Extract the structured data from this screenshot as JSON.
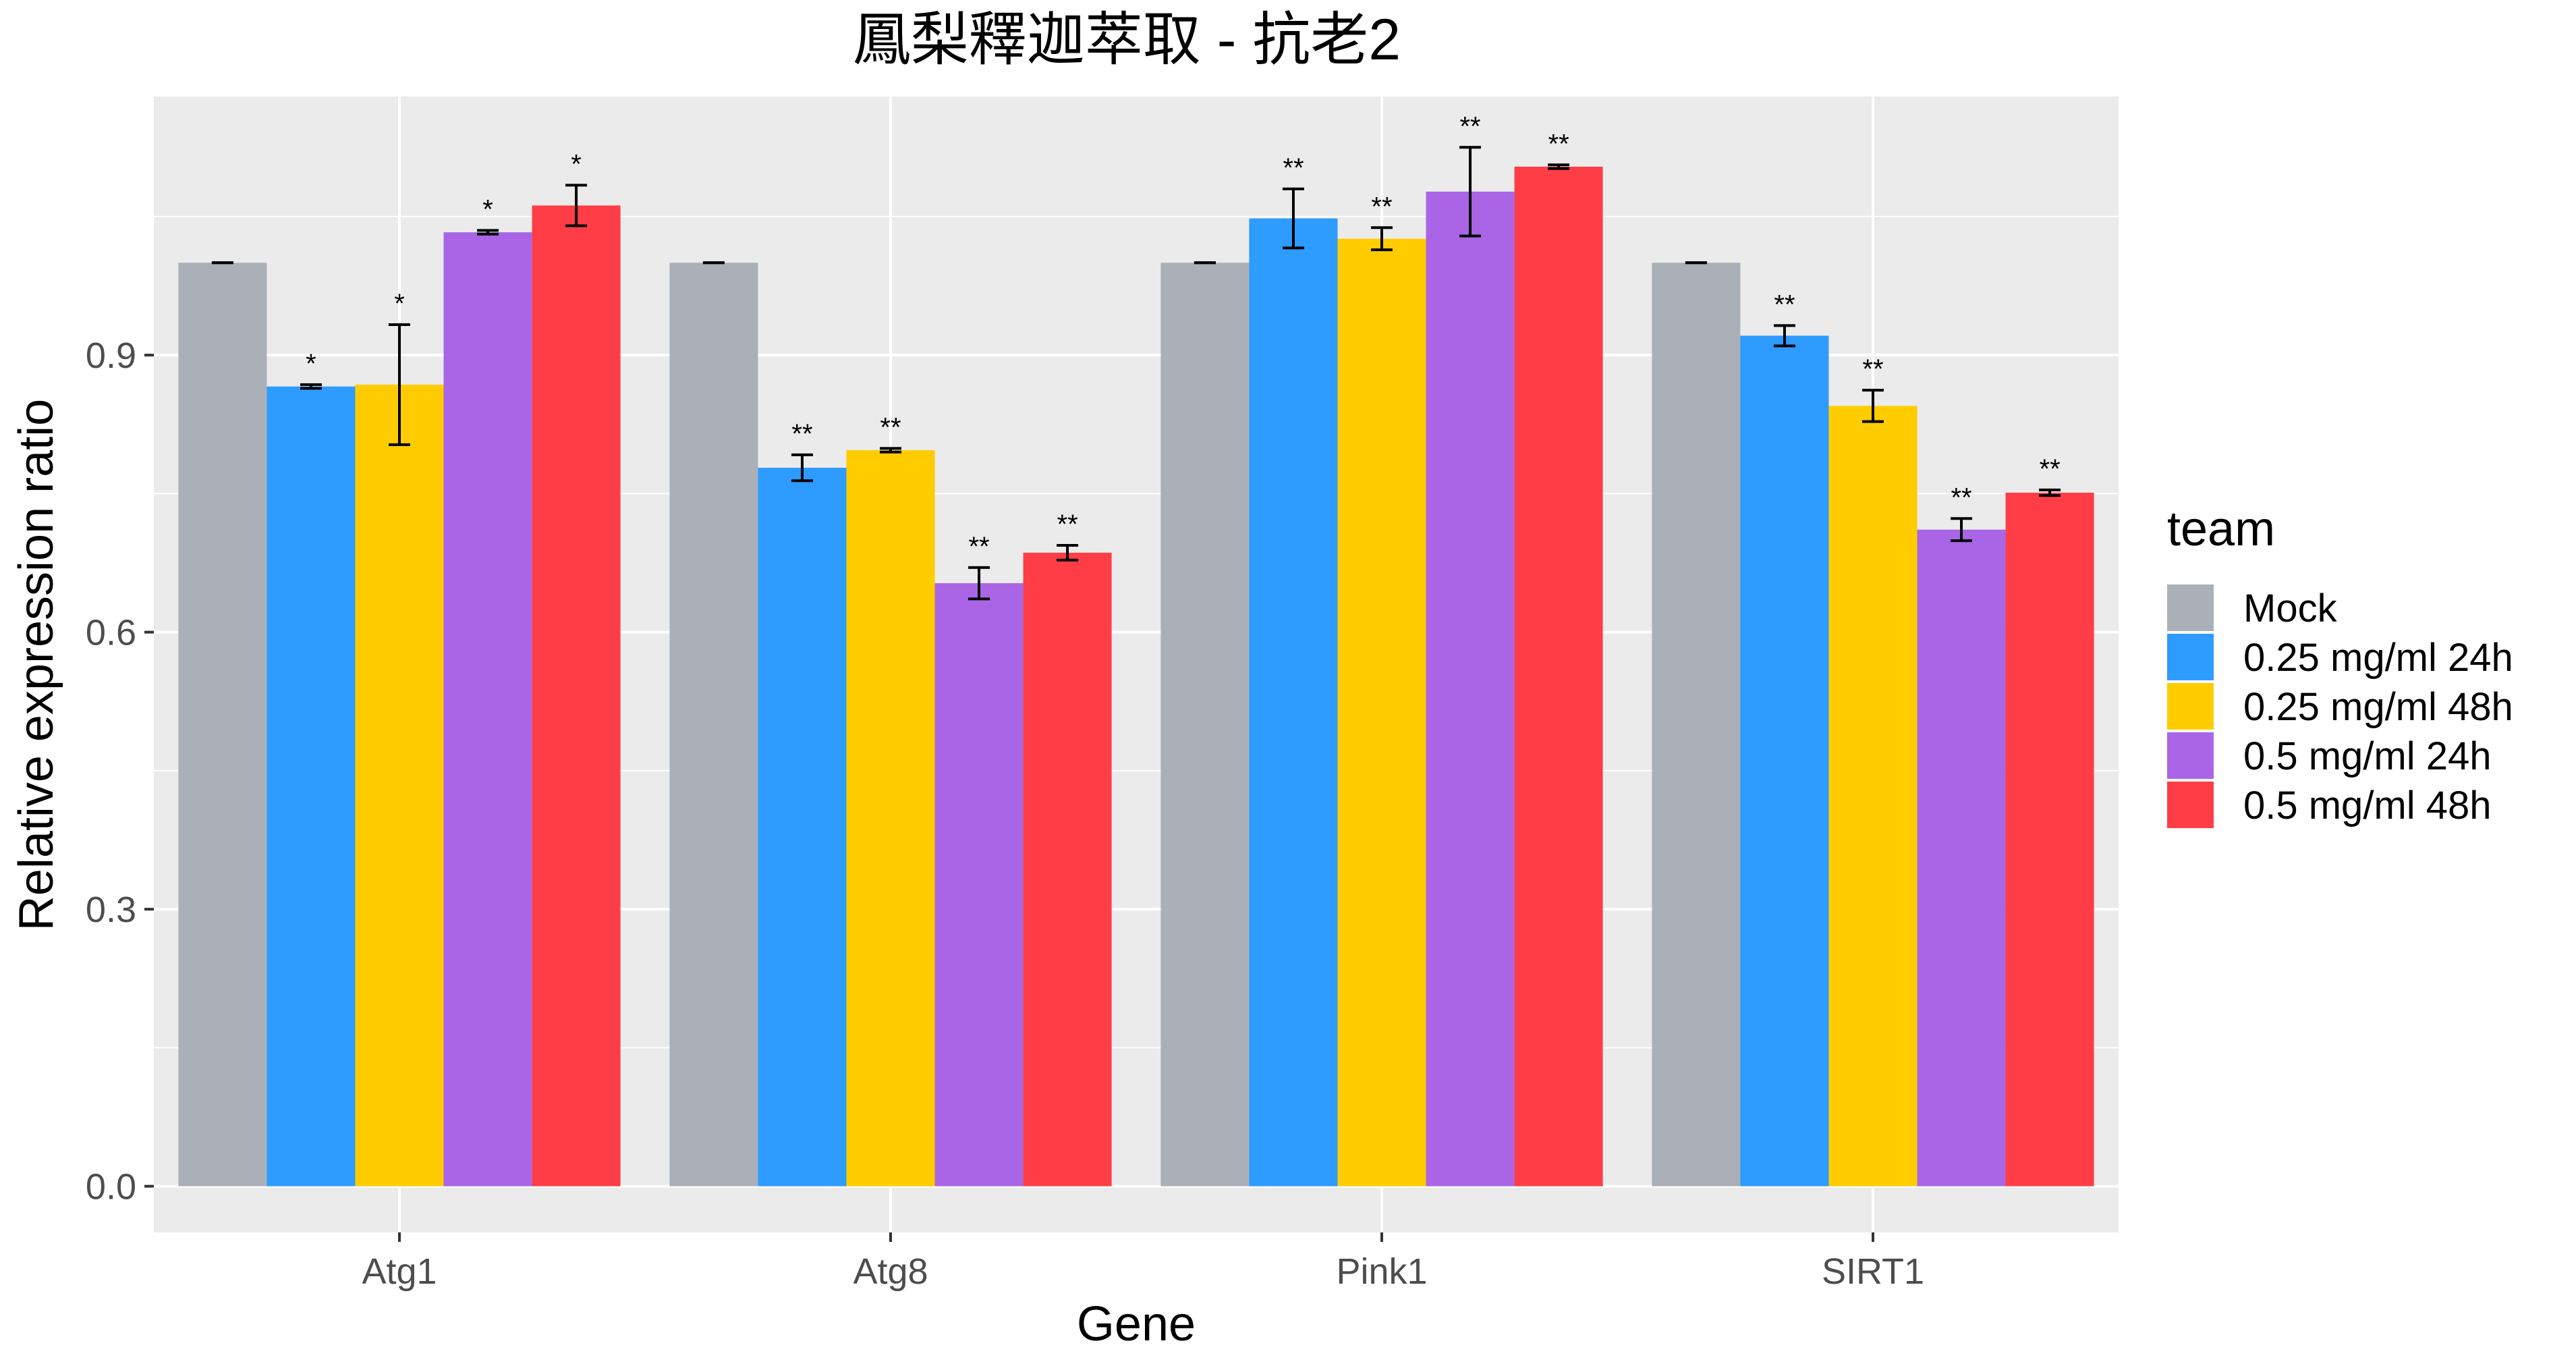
{
  "chart_data": {
    "type": "bar",
    "title": "鳳梨釋迦萃取 - 抗老2",
    "xlabel": "Gene",
    "ylabel": "Relative expression ratio",
    "categories": [
      "Atg1",
      "Atg8",
      "Pink1",
      "SIRT1"
    ],
    "ylim": [
      -0.05,
      1.18
    ],
    "yticks": [
      0.0,
      0.3,
      0.6,
      0.9
    ],
    "ytick_labels": [
      "0.0",
      "0.3",
      "0.6",
      "0.9"
    ],
    "grid": true,
    "legend": {
      "title": "team",
      "position": "right"
    },
    "series": [
      {
        "name": "Mock",
        "color": "#ABB0B8",
        "values": [
          1.0,
          1.0,
          1.0,
          1.0
        ],
        "errors": [
          0.0,
          0.0,
          0.0,
          0.0
        ],
        "sig": [
          "",
          "",
          "",
          ""
        ]
      },
      {
        "name": "0.25 mg/ml 24h",
        "color": "#2E9BFF",
        "values": [
          0.866,
          0.778,
          1.048,
          0.921
        ],
        "errors": [
          0.002,
          0.014,
          0.032,
          0.011
        ],
        "sig": [
          "*",
          "**",
          "**",
          "**"
        ]
      },
      {
        "name": "0.25 mg/ml 48h",
        "color": "#FFCC00",
        "values": [
          0.868,
          0.797,
          1.026,
          0.845
        ],
        "errors": [
          0.065,
          0.002,
          0.012,
          0.017
        ],
        "sig": [
          "*",
          "**",
          "**",
          "**"
        ]
      },
      {
        "name": "0.5 mg/ml 24h",
        "color": "#A965E6",
        "values": [
          1.033,
          0.653,
          1.077,
          0.711
        ],
        "errors": [
          0.002,
          0.017,
          0.048,
          0.012
        ],
        "sig": [
          "*",
          "**",
          "**",
          "**"
        ]
      },
      {
        "name": "0.5 mg/ml 48h",
        "color": "#FF3D46",
        "values": [
          1.062,
          0.686,
          1.104,
          0.751
        ],
        "errors": [
          0.022,
          0.008,
          0.002,
          0.003
        ],
        "sig": [
          "*",
          "**",
          "**",
          "**"
        ]
      }
    ]
  }
}
